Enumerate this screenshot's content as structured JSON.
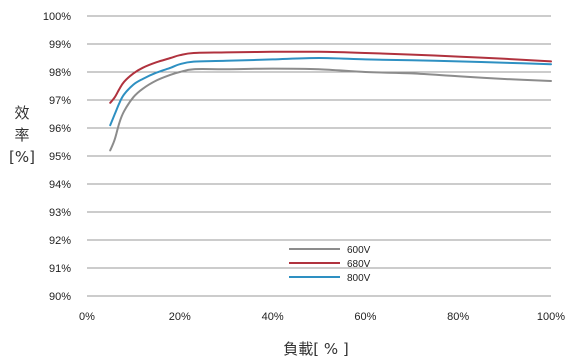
{
  "chart_data": {
    "type": "line",
    "xlabel": "負載[ % ]",
    "ylabel_lines": [
      "效",
      "率",
      "[%]"
    ],
    "xlim": [
      0,
      100
    ],
    "ylim": [
      90,
      100
    ],
    "x_ticks": [
      "0%",
      "20%",
      "40%",
      "60%",
      "80%",
      "100%"
    ],
    "y_ticks": [
      "90%",
      "91%",
      "92%",
      "93%",
      "94%",
      "95%",
      "96%",
      "97%",
      "98%",
      "99%",
      "100%"
    ],
    "grid": "horizontal",
    "legend_position": "center-bottom",
    "series": [
      {
        "name": "600V",
        "color": "#8c8c8c",
        "x": [
          5,
          6,
          7,
          8,
          10,
          12,
          15,
          18,
          20,
          23,
          30,
          40,
          50,
          60,
          70,
          80,
          90,
          100
        ],
        "y": [
          95.2,
          95.6,
          96.2,
          96.6,
          97.1,
          97.4,
          97.7,
          97.9,
          98.0,
          98.1,
          98.1,
          98.12,
          98.1,
          98.0,
          97.95,
          97.85,
          97.75,
          97.68
        ]
      },
      {
        "name": "680V",
        "color": "#b0323e",
        "x": [
          5,
          6,
          7,
          8,
          10,
          12,
          15,
          18,
          20,
          23,
          30,
          40,
          50,
          60,
          70,
          80,
          90,
          100
        ],
        "y": [
          96.9,
          97.1,
          97.4,
          97.65,
          97.95,
          98.15,
          98.35,
          98.5,
          98.6,
          98.68,
          98.7,
          98.72,
          98.72,
          98.68,
          98.62,
          98.55,
          98.47,
          98.38
        ]
      },
      {
        "name": "800V",
        "color": "#2e90c2",
        "x": [
          5,
          6,
          7,
          8,
          10,
          12,
          15,
          18,
          20,
          23,
          30,
          40,
          50,
          60,
          70,
          80,
          90,
          100
        ],
        "y": [
          96.1,
          96.5,
          96.9,
          97.2,
          97.55,
          97.75,
          97.98,
          98.15,
          98.28,
          98.37,
          98.4,
          98.45,
          98.5,
          98.45,
          98.42,
          98.38,
          98.33,
          98.28
        ]
      }
    ]
  }
}
